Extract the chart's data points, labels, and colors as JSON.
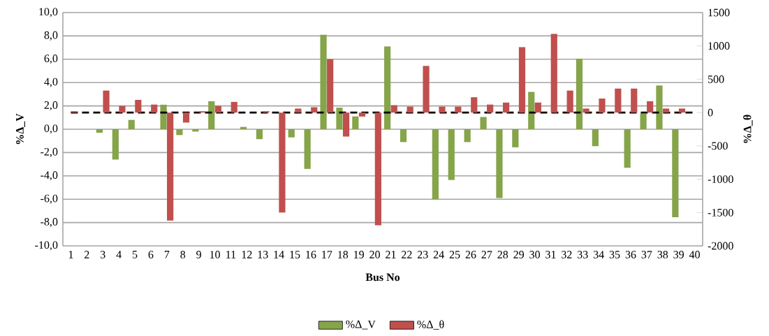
{
  "chart_data": {
    "type": "bar",
    "xlabel": "Bus No",
    "ylabel": "%Δ_V",
    "y2label": "%Δ_θ",
    "categories": [
      "1",
      "2",
      "3",
      "4",
      "5",
      "6",
      "7",
      "8",
      "9",
      "10",
      "11",
      "12",
      "13",
      "14",
      "15",
      "16",
      "17",
      "18",
      "19",
      "20",
      "21",
      "22",
      "23",
      "24",
      "25",
      "26",
      "27",
      "28",
      "29",
      "30",
      "31",
      "32",
      "33",
      "34",
      "35",
      "36",
      "37",
      "38",
      "39",
      "40"
    ],
    "series": [
      {
        "name": "%Δ_V",
        "color": "#86a44a",
        "values": [
          0,
          0,
          -0.3,
          -2.6,
          0.8,
          0,
          2.1,
          -0.5,
          -0.2,
          2.4,
          0,
          0.2,
          -0.85,
          0,
          -0.7,
          -3.4,
          8.1,
          1.85,
          1.1,
          0,
          7.1,
          -1.1,
          0,
          -6.0,
          -4.35,
          -1.1,
          1.05,
          -5.9,
          -1.55,
          3.2,
          0,
          0,
          6.05,
          -1.45,
          0,
          -3.3,
          1.35,
          3.75,
          -7.55,
          0
        ]
      },
      {
        "name": "%Δ_θ",
        "color": "#c0504d",
        "axis": "y2",
        "values": [
          20,
          0,
          330,
          100,
          190,
          120,
          -1620,
          -150,
          20,
          100,
          160,
          0,
          20,
          -1500,
          60,
          80,
          800,
          -360,
          -60,
          -1690,
          110,
          90,
          700,
          90,
          90,
          230,
          120,
          150,
          980,
          150,
          1180,
          330,
          60,
          210,
          360,
          360,
          170,
          60,
          60,
          0
        ]
      }
    ],
    "ylim": [
      -10,
      10
    ],
    "yticks": [
      {
        "value": -10,
        "label": "-10,0"
      },
      {
        "value": -8,
        "label": "-8,0"
      },
      {
        "value": -6,
        "label": "-6,0"
      },
      {
        "value": -4,
        "label": "-4,0"
      },
      {
        "value": -2,
        "label": "-2,0"
      },
      {
        "value": 0,
        "label": "0,0"
      },
      {
        "value": 2,
        "label": "2,0"
      },
      {
        "value": 4,
        "label": "4,0"
      },
      {
        "value": 6,
        "label": "6,0"
      },
      {
        "value": 8,
        "label": "8,0"
      },
      {
        "value": 10,
        "label": "10,0"
      }
    ],
    "y2lim": [
      -2000,
      1500
    ],
    "y2ticks": [
      -2000,
      -1500,
      -1000,
      -500,
      0,
      500,
      1000,
      1500
    ],
    "ref_lines": [
      {
        "axis": "y2",
        "value": 0,
        "color": "#000000",
        "line_style": "dashed"
      }
    ],
    "grid": "y",
    "legend": "bottom"
  }
}
